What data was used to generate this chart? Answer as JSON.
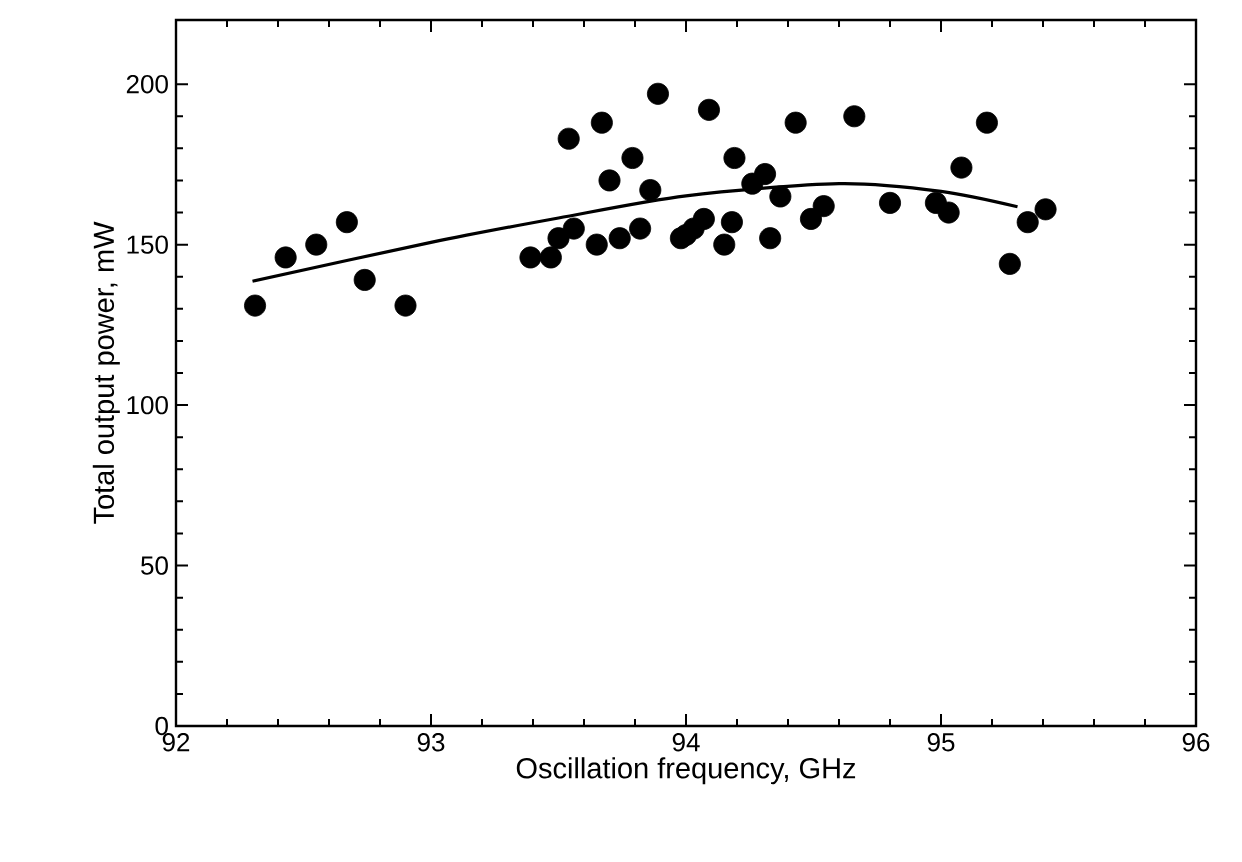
{
  "chart_data": {
    "type": "scatter",
    "xlabel": "Oscillation frequency, GHz",
    "ylabel": "Total output power, mW",
    "xlim": [
      92,
      96
    ],
    "ylim": [
      0,
      220
    ],
    "xticks": [
      92,
      93,
      94,
      95,
      96
    ],
    "yticks": [
      0,
      50,
      100,
      150,
      200
    ],
    "marker": "circle",
    "series": [
      {
        "color": "#000000",
        "x": [
          92.31,
          92.43,
          92.55,
          92.67,
          92.74,
          92.9,
          93.39,
          93.47,
          93.5,
          93.54,
          93.56,
          93.65,
          93.67,
          93.7,
          93.74,
          93.79,
          93.82,
          93.86,
          93.89,
          93.98,
          94.0,
          94.03,
          94.07,
          94.09,
          94.15,
          94.18,
          94.19,
          94.26,
          94.31,
          94.33,
          94.37,
          94.43,
          94.49,
          94.54,
          94.66,
          94.8,
          94.98,
          95.03,
          95.08,
          95.18,
          95.27,
          95.34,
          95.41
        ],
        "values": [
          131,
          146,
          150,
          157,
          139,
          131,
          146,
          146,
          152,
          183,
          155,
          150,
          188,
          170,
          152,
          177,
          155,
          167,
          197,
          152,
          153,
          155,
          158,
          192,
          150,
          157,
          177,
          169,
          172,
          152,
          165,
          188,
          158,
          162,
          190,
          163,
          163,
          160,
          174,
          188,
          144,
          157,
          161
        ]
      },
      {
        "type": "line",
        "color": "#000000",
        "marker": "none",
        "line_style": "solid",
        "x": [
          92.3,
          93.0,
          93.5,
          94.0,
          94.6,
          95.0,
          95.3
        ],
        "values": [
          138.6,
          150.7,
          158.3,
          165.2,
          169,
          166.6,
          161.8
        ]
      }
    ]
  }
}
